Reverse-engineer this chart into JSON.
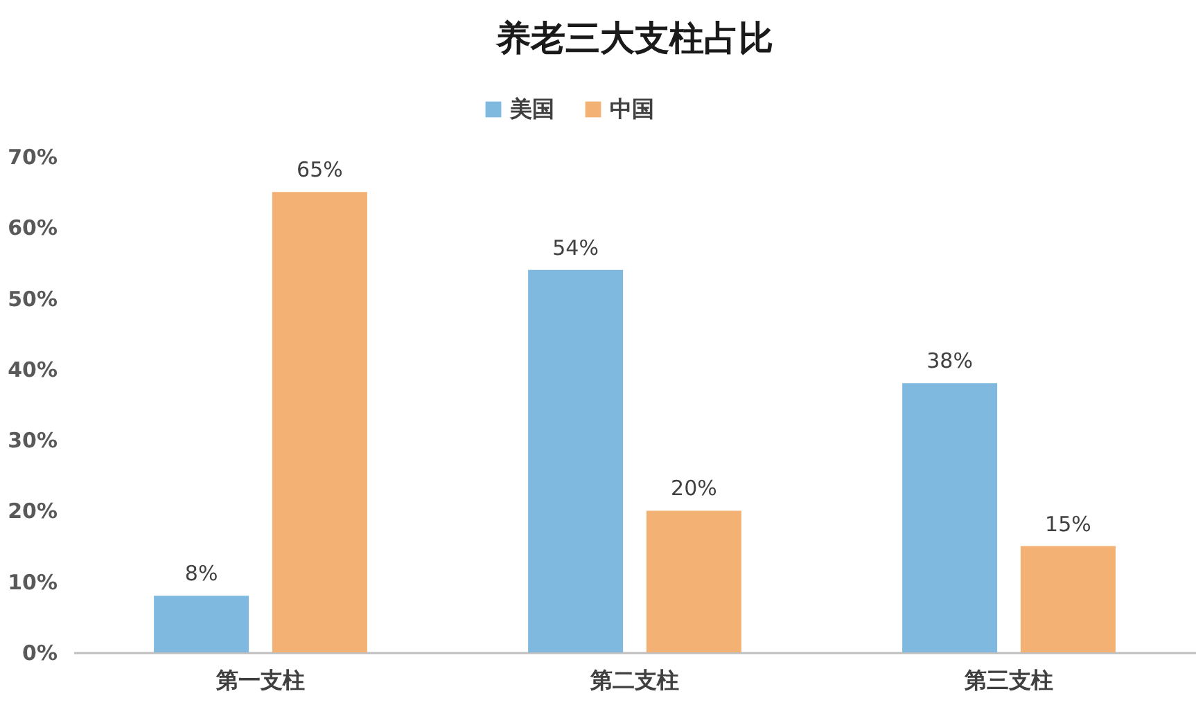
{
  "chart_data": {
    "type": "bar",
    "title": "养老三大支柱占比",
    "categories": [
      "第一支柱",
      "第二支柱",
      "第三支柱"
    ],
    "series": [
      {
        "name": "美国",
        "color": "#7fb9e0",
        "values": [
          8,
          54,
          38
        ],
        "value_labels": [
          "8%",
          "54%",
          "38%"
        ]
      },
      {
        "name": "中国",
        "color": "#f3b273",
        "values": [
          65,
          20,
          15
        ],
        "value_labels": [
          "65%",
          "20%",
          "15%"
        ]
      }
    ],
    "ylim": [
      0,
      70
    ],
    "yticks": [
      {
        "value": 0,
        "label": "0%"
      },
      {
        "value": 10,
        "label": "10%"
      },
      {
        "value": 20,
        "label": "20%"
      },
      {
        "value": 30,
        "label": "30%"
      },
      {
        "value": 40,
        "label": "40%"
      },
      {
        "value": 50,
        "label": "50%"
      },
      {
        "value": 60,
        "label": "60%"
      },
      {
        "value": 70,
        "label": "70%"
      }
    ],
    "legend": "top"
  }
}
